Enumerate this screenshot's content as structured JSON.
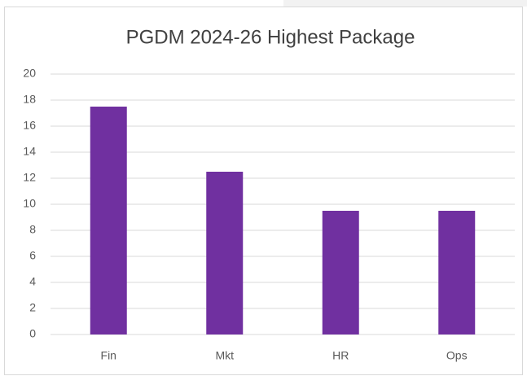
{
  "chart_data": {
    "type": "bar",
    "title": "PGDM 2024-26 Highest Package",
    "categories": [
      "Fin",
      "Mkt",
      "HR",
      "Ops"
    ],
    "values": [
      17.5,
      12.5,
      9.5,
      9.5
    ],
    "color": "#7030a0",
    "ylim": [
      0,
      20
    ],
    "yticks": [
      0,
      2,
      4,
      6,
      8,
      10,
      12,
      14,
      16,
      18,
      20
    ],
    "grid": true
  }
}
